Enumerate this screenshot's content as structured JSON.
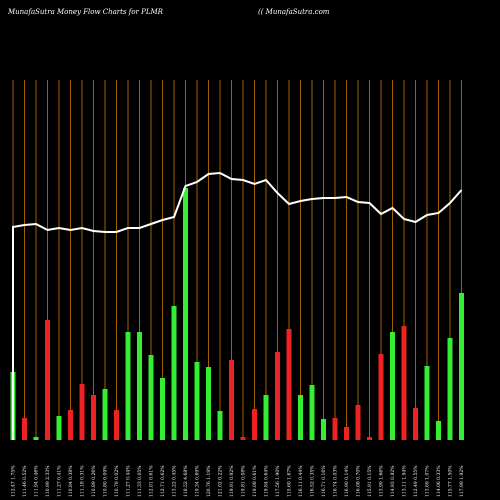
{
  "chart_data": {
    "type": "bar",
    "title": "MunafaSutra  Money Flow  Charts for PLMR",
    "subtitle": "(( MunafaSutra.com",
    "categories": [
      "112.47 1.75%",
      "111.46 0.52%",
      "111.94 0.46%",
      "110.99 2.33%",
      "111.27 0.41%",
      "110.84 0.38%",
      "111.18 0.31%",
      "110.89 0.26%",
      "110.80 0.09%",
      "110.78 0.02%",
      "111.27 0.44%",
      "111.33 0.05%",
      "112.01 0.61%",
      "112.71 0.62%",
      "113.22 0.45%",
      "118.52 4.68%",
      "119.34 0.69%",
      "120.76 1.19%",
      "121.02 0.22%",
      "119.91 0.92%",
      "119.81 0.08%",
      "119.08 0.61%",
      "119.84 0.64%",
      "117.56 1.90%",
      "115.60 1.67%",
      "116.11 0.44%",
      "116.52 0.35%",
      "116.71 0.16%",
      "116.74 0.03%",
      "116.90 0.14%",
      "116.08 0.70%",
      "115.91 0.15%",
      "113.99 1.66%",
      "114.93 0.82%",
      "113.11 1.94%",
      "112.49 0.55%",
      "113.69 1.07%",
      "114.06 0.33%",
      "115.77 1.50%",
      "117.99 1.92%"
    ],
    "values": [
      68,
      22,
      3,
      120,
      24,
      30,
      56,
      45,
      51,
      30,
      108,
      108,
      85,
      62,
      134,
      252,
      78,
      73,
      29,
      80,
      3,
      31,
      45,
      88,
      111,
      45,
      55,
      21,
      22,
      13,
      35,
      3,
      86,
      108,
      114,
      32,
      74,
      19,
      102,
      147
    ],
    "colors": [
      "#33ee33",
      "#ee2222",
      "#33ee33",
      "#ee2222",
      "#33ee33",
      "#ee2222",
      "#ee2222",
      "#ee2222",
      "#33ee33",
      "#ee2222",
      "#33ee33",
      "#33ee33",
      "#33ee33",
      "#33ee33",
      "#33ee33",
      "#33ee33",
      "#33ee33",
      "#33ee33",
      "#33ee33",
      "#ee2222",
      "#ee2222",
      "#ee2222",
      "#33ee33",
      "#ee2222",
      "#ee2222",
      "#33ee33",
      "#33ee33",
      "#33ee33",
      "#ee2222",
      "#ee2222",
      "#ee2222",
      "#ee2222",
      "#ee2222",
      "#33ee33",
      "#ee2222",
      "#ee2222",
      "#33ee33",
      "#33ee33",
      "#33ee33",
      "#33ee33"
    ],
    "line": {
      "color": "#ffffff",
      "values": [
        213,
        215,
        216,
        210,
        212,
        210,
        212,
        209,
        208,
        208,
        212,
        212,
        216,
        220,
        223,
        254,
        258,
        266,
        267,
        261,
        260,
        256,
        260,
        247,
        236,
        239,
        241,
        242,
        242,
        243,
        238,
        237,
        226,
        232,
        221,
        218,
        225,
        227,
        237,
        250
      ]
    },
    "gridcolor": "#cc7a00",
    "ylim": [
      0,
      360
    ]
  }
}
